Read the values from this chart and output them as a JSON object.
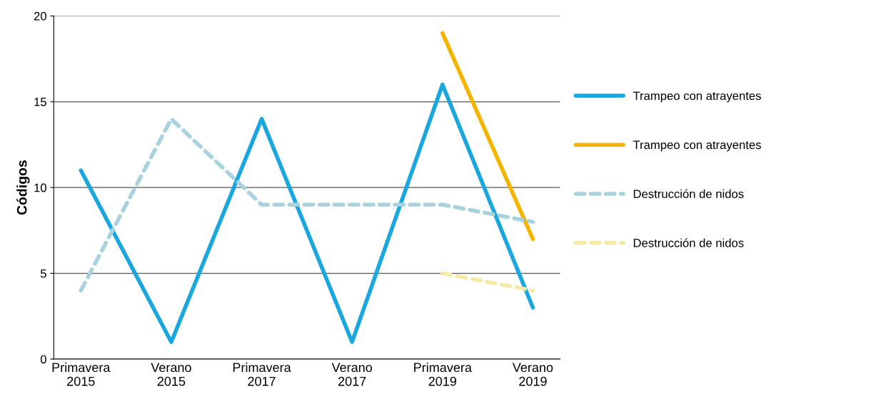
{
  "chart_data": {
    "type": "line",
    "ylabel": "Códigos",
    "categories": [
      "Primavera\n2015",
      "Verano\n2015",
      "Primavera\n2017",
      "Verano\n2017",
      "Primavera\n2019",
      "Verano\n2019"
    ],
    "ylim": [
      0,
      20
    ],
    "yticks": [
      0,
      5,
      10,
      15,
      20
    ],
    "grid": "y",
    "legend": "right",
    "marker": "none",
    "series": [
      {
        "name": "Trampeo con atrayentes",
        "color": "#1aa7e0",
        "line_style": "solid",
        "values": [
          11,
          1,
          14,
          1,
          16,
          3
        ]
      },
      {
        "name": "Trampeo con atrayentes",
        "color": "#f5b400",
        "line_style": "solid",
        "values": [
          null,
          null,
          null,
          null,
          19,
          7
        ]
      },
      {
        "name": "Destrucción de nidos",
        "color": "#a8d3de",
        "line_style": "dashed",
        "values": [
          4,
          14,
          9,
          9,
          9,
          8
        ]
      },
      {
        "name": "Destrucción de nidos",
        "color": "#f5e9a8",
        "line_style": "dashed",
        "values": [
          null,
          null,
          null,
          null,
          5,
          4
        ]
      }
    ]
  }
}
